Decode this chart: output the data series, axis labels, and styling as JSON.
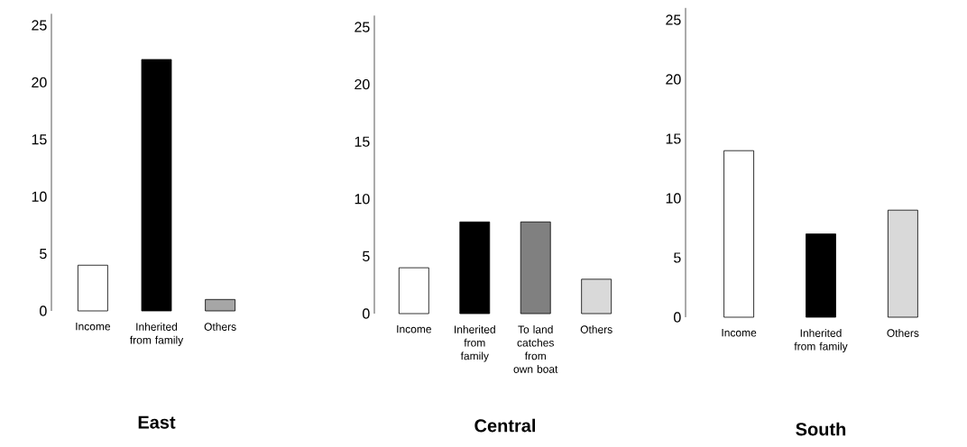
{
  "chart_data": [
    {
      "type": "bar",
      "title": "East",
      "categories": [
        "Income",
        "Inherited from family",
        "Others"
      ],
      "values": [
        4,
        22,
        1
      ],
      "colors": [
        "#ffffff",
        "#000000",
        "#a6a6a6"
      ],
      "ylim": [
        0,
        26
      ],
      "yticks": [
        0,
        5,
        10,
        15,
        20,
        25
      ]
    },
    {
      "type": "bar",
      "title": "Central",
      "categories": [
        "Income",
        "Inherited from family",
        "To land catches from own boat",
        "Others"
      ],
      "values": [
        4,
        8,
        8,
        3
      ],
      "colors": [
        "#ffffff",
        "#000000",
        "#808080",
        "#d9d9d9"
      ],
      "ylim": [
        0,
        26
      ],
      "yticks": [
        0,
        5,
        10,
        15,
        20,
        25
      ]
    },
    {
      "type": "bar",
      "title": "South",
      "categories": [
        "Income",
        "Inherited from family",
        "Others"
      ],
      "values": [
        14,
        7,
        9
      ],
      "colors": [
        "#ffffff",
        "#000000",
        "#d9d9d9"
      ],
      "ylim": [
        0,
        26
      ],
      "yticks": [
        0,
        5,
        10,
        15,
        20,
        25
      ]
    }
  ]
}
